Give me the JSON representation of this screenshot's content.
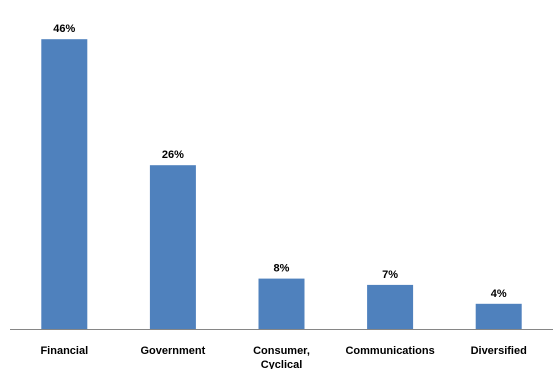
{
  "chart_data": {
    "type": "bar",
    "categories": [
      "Financial",
      "Government",
      "Consumer, Cyclical",
      "Communications",
      "Diversified"
    ],
    "category_label_lines": [
      [
        "Financial"
      ],
      [
        "Government"
      ],
      [
        "Consumer,",
        "Cyclical"
      ],
      [
        "Communications"
      ],
      [
        "Diversified"
      ]
    ],
    "values": [
      46,
      26,
      8,
      7,
      4
    ],
    "data_labels": [
      "46%",
      "26%",
      "8%",
      "7%",
      "4%"
    ],
    "unit": "%",
    "title": "",
    "xlabel": "",
    "ylabel": "",
    "ylim": [
      0,
      50
    ],
    "grid": false,
    "legend": "none",
    "bar_color": "#4F81BD",
    "axis_color": "#868686"
  }
}
